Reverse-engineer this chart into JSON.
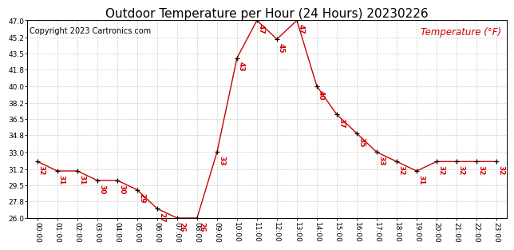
{
  "title": "Outdoor Temperature per Hour (24 Hours) 20230226",
  "copyright_text": "Copyright 2023 Cartronics.com",
  "legend_text": "Temperature (°F)",
  "hours": [
    "00:00",
    "01:00",
    "02:00",
    "03:00",
    "04:00",
    "05:00",
    "06:00",
    "07:00",
    "08:00",
    "09:00",
    "10:00",
    "11:00",
    "12:00",
    "13:00",
    "14:00",
    "15:00",
    "16:00",
    "17:00",
    "18:00",
    "19:00",
    "20:00",
    "21:00",
    "22:00",
    "23:00"
  ],
  "temps": [
    32,
    31,
    31,
    30,
    30,
    29,
    27,
    26,
    26,
    33,
    43,
    47,
    45,
    47,
    40,
    37,
    35,
    33,
    32,
    31,
    32,
    32,
    32,
    32
  ],
  "ylim": [
    26.0,
    47.0
  ],
  "yticks": [
    26.0,
    27.8,
    29.5,
    31.2,
    33.0,
    34.8,
    36.5,
    38.2,
    40.0,
    41.8,
    43.5,
    45.2,
    47.0
  ],
  "line_color": "#cc0000",
  "marker_color": "#000000",
  "title_color": "#000000",
  "copyright_color": "#000000",
  "legend_color": "#cc0000",
  "bg_color": "#ffffff",
  "grid_color": "#cccccc",
  "title_fontsize": 11,
  "copyright_fontsize": 7,
  "legend_fontsize": 8.5,
  "label_fontsize": 6.5,
  "tick_fontsize": 6.5
}
